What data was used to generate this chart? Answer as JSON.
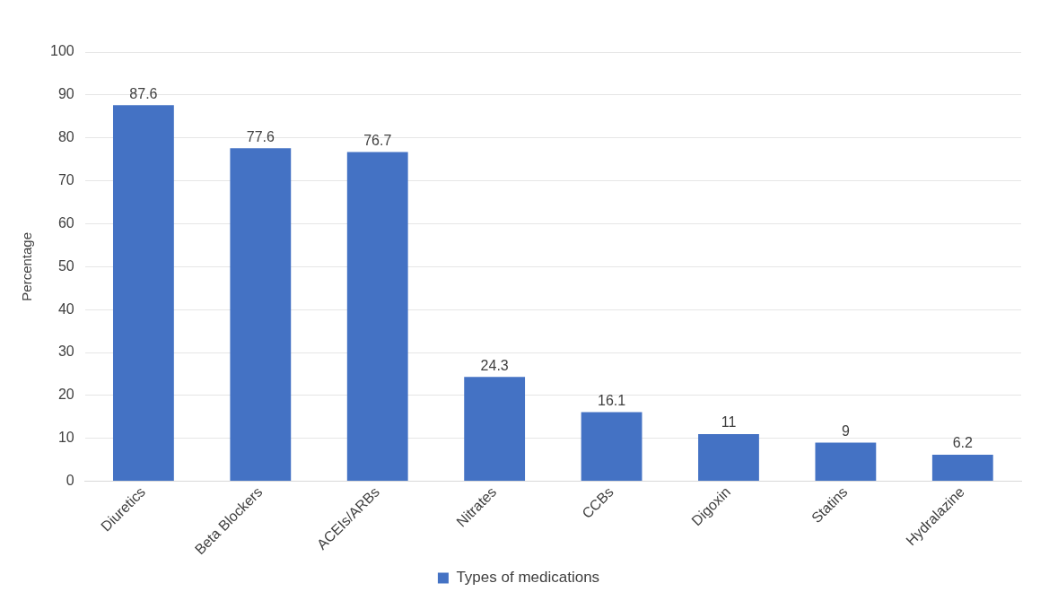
{
  "chart_data": {
    "type": "bar",
    "ylabel": "Percentage",
    "categories": [
      "Diuretics",
      "Beta Blockers",
      "ACEIs/ARBs",
      "Nitrates",
      "CCBs",
      "Digoxin",
      "Statins",
      "Hydralazine"
    ],
    "series": [
      {
        "name": "Types of medications",
        "color": "#4472c4",
        "values": [
          87.6,
          77.6,
          76.7,
          24.3,
          16.1,
          11,
          9,
          6.2
        ]
      }
    ],
    "ylim": [
      0,
      100
    ],
    "yticks": [
      0,
      10,
      20,
      30,
      40,
      50,
      60,
      70,
      80,
      90,
      100
    ],
    "grid": "y",
    "legend": "bottom",
    "data_labels": true
  }
}
